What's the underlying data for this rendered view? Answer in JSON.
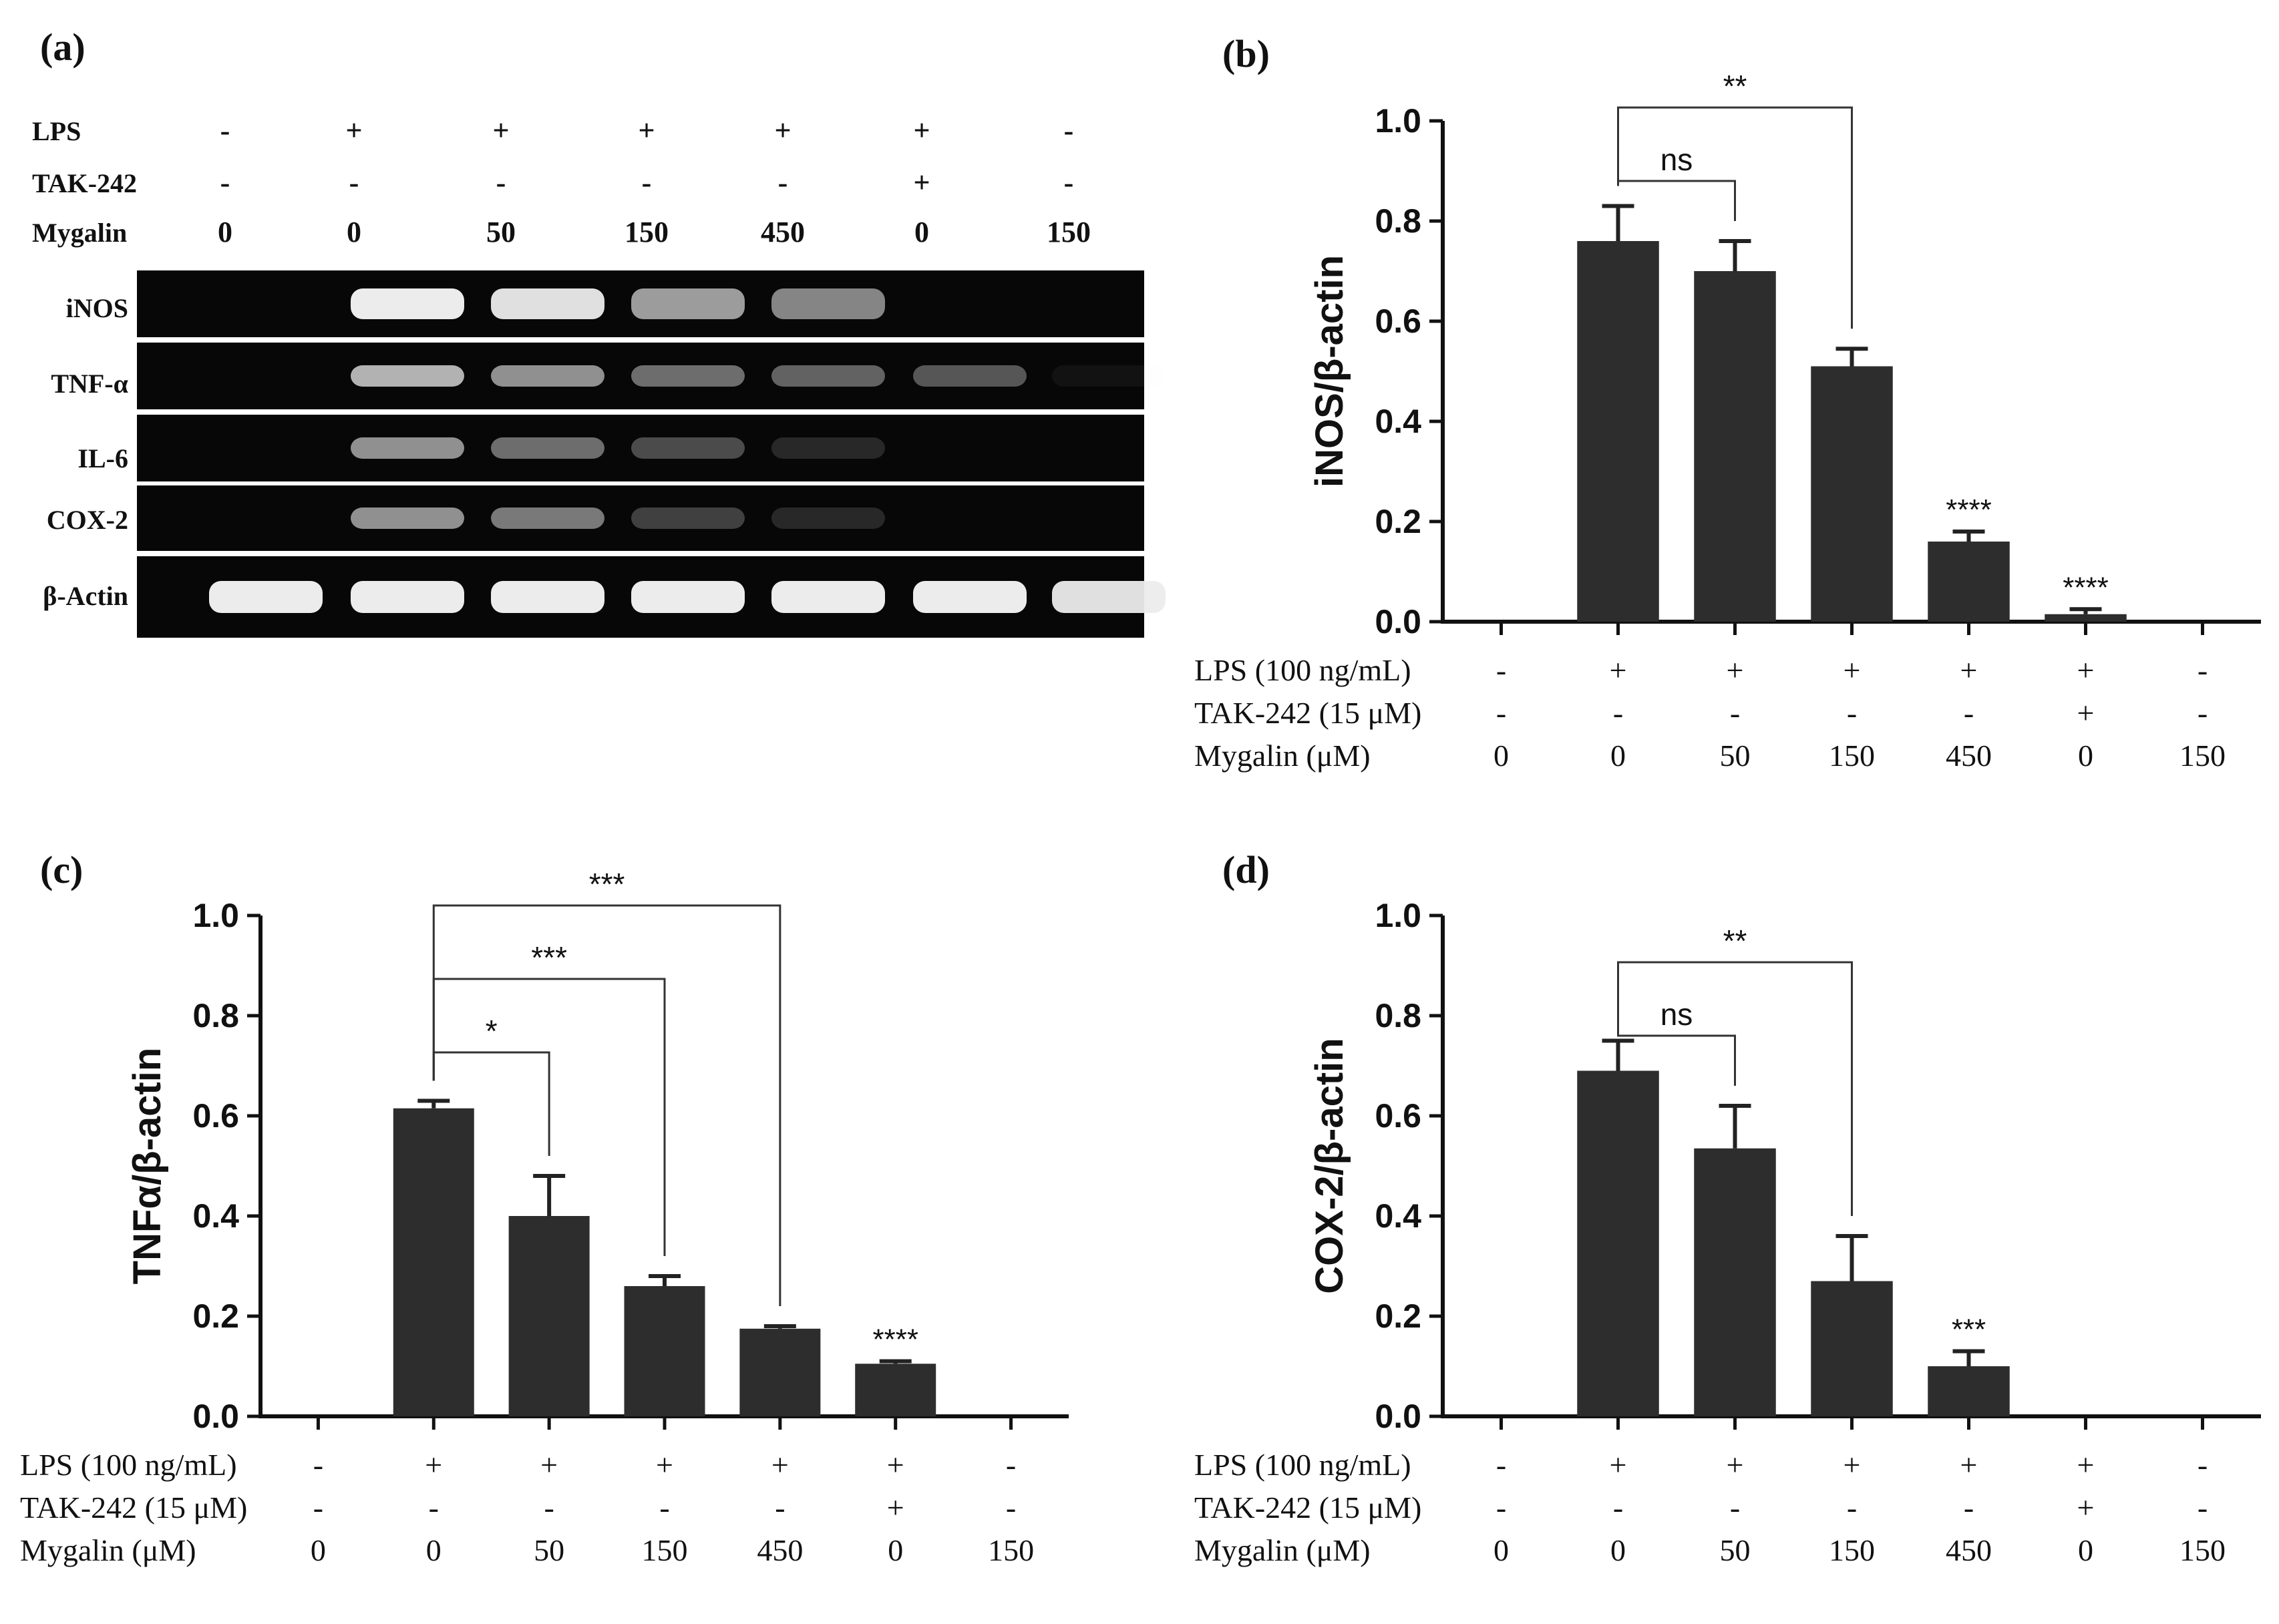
{
  "gel": {
    "panel_label": "(a)",
    "row_labels": [
      "LPS",
      "TAK-242",
      "Mygalin"
    ],
    "lps": [
      "-",
      "+",
      "+",
      "+",
      "+",
      "+",
      "-"
    ],
    "tak": [
      "-",
      "-",
      "-",
      "-",
      "-",
      "+",
      "-"
    ],
    "mygalin": [
      "0",
      "0",
      "50",
      "150",
      "450",
      "0",
      "150"
    ],
    "band_labels": [
      "iNOS",
      "TNF-α",
      "IL-6",
      "COX-2",
      "β-Actin"
    ],
    "band_intensity": {
      "iNOS": [
        0.0,
        1.0,
        0.95,
        0.65,
        0.55,
        0.0,
        0.0
      ],
      "TNF-α": [
        0.0,
        0.75,
        0.6,
        0.45,
        0.4,
        0.35,
        0.05
      ],
      "IL-6": [
        0.0,
        0.6,
        0.45,
        0.3,
        0.15,
        0.0,
        0.0
      ],
      "COX-2": [
        0.0,
        0.6,
        0.5,
        0.25,
        0.15,
        0.0,
        0.0
      ],
      "β-Actin": [
        1.0,
        1.0,
        1.0,
        1.0,
        1.0,
        1.0,
        0.95
      ]
    }
  },
  "conditions": {
    "row_labels": [
      "LPS (100 ng/mL)",
      "TAK-242 (15 μM)",
      "Mygalin (μM)"
    ],
    "lps": [
      "-",
      "+",
      "+",
      "+",
      "+",
      "+",
      "-"
    ],
    "tak": [
      "-",
      "-",
      "-",
      "-",
      "-",
      "+",
      "-"
    ],
    "mygalin": [
      "0",
      "0",
      "50",
      "150",
      "450",
      "0",
      "150"
    ]
  },
  "colors": {
    "bar": "#2d2d2d",
    "gel_bg": "#070707",
    "band": "#ececec"
  },
  "chart_data": [
    {
      "panel_label": "(b)",
      "type": "bar",
      "ylabel": "iNOS/β-actin",
      "ylim": [
        0,
        1.0
      ],
      "yticks": [
        "0.0",
        "0.2",
        "0.4",
        "0.6",
        "0.8",
        "1.0"
      ],
      "values": [
        0,
        0.76,
        0.7,
        0.51,
        0.16,
        0.015,
        0
      ],
      "errors": [
        0,
        0.07,
        0.06,
        0.035,
        0.02,
        0.01,
        0
      ],
      "bar_sig": [
        "",
        "",
        "",
        "",
        "****",
        "****",
        ""
      ],
      "brackets": [
        {
          "from": 1,
          "to": 2,
          "label": "ns"
        },
        {
          "from": 1,
          "to": 3,
          "label": "**"
        }
      ]
    },
    {
      "panel_label": "(c)",
      "type": "bar",
      "ylabel": "TNFα/β-actin",
      "ylim": [
        0,
        1.0
      ],
      "yticks": [
        "0.0",
        "0.2",
        "0.4",
        "0.6",
        "0.8",
        "1.0"
      ],
      "values": [
        0,
        0.615,
        0.4,
        0.26,
        0.175,
        0.105,
        0
      ],
      "errors": [
        0,
        0.015,
        0.08,
        0.02,
        0.005,
        0.005,
        0
      ],
      "bar_sig": [
        "",
        "",
        "",
        "",
        "",
        "****",
        ""
      ],
      "brackets": [
        {
          "from": 1,
          "to": 2,
          "label": "*"
        },
        {
          "from": 1,
          "to": 3,
          "label": "***"
        },
        {
          "from": 1,
          "to": 4,
          "label": "***"
        }
      ]
    },
    {
      "panel_label": "(d)",
      "type": "bar",
      "ylabel": "COX-2/β-actin",
      "ylim": [
        0,
        1.0
      ],
      "yticks": [
        "0.0",
        "0.2",
        "0.4",
        "0.6",
        "0.8",
        "1.0"
      ],
      "values": [
        0,
        0.69,
        0.535,
        0.27,
        0.1,
        0,
        0
      ],
      "errors": [
        0,
        0.06,
        0.085,
        0.09,
        0.03,
        0,
        0
      ],
      "bar_sig": [
        "",
        "",
        "",
        "",
        "***",
        "",
        ""
      ],
      "brackets": [
        {
          "from": 1,
          "to": 2,
          "label": "ns"
        },
        {
          "from": 1,
          "to": 3,
          "label": "**"
        }
      ]
    }
  ]
}
